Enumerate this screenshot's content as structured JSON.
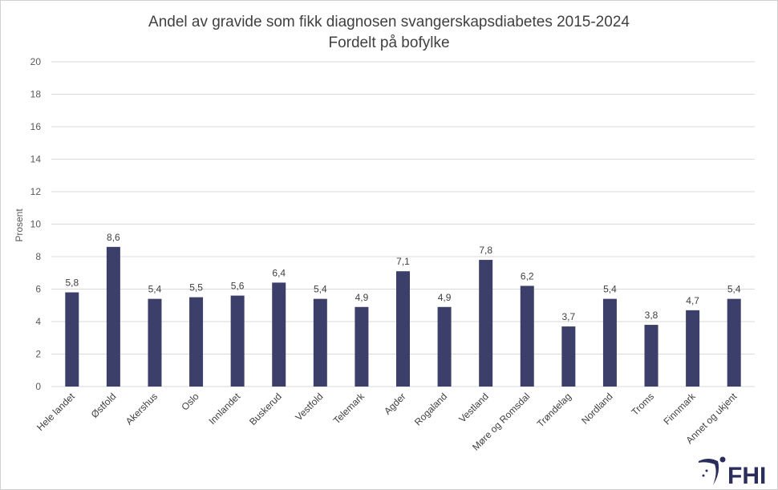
{
  "chart_data": {
    "type": "bar",
    "title": "Andel av gravide som fikk diagnosen svangerskapsdiabetes 2015-2024",
    "subtitle": "Fordelt på bofylke",
    "ylabel": "Prosent",
    "xlabel": "",
    "ylim": [
      0,
      20
    ],
    "yticks": [
      0,
      2,
      4,
      6,
      8,
      10,
      12,
      14,
      16,
      18,
      20
    ],
    "grid": true,
    "categories": [
      "Hele landet",
      "Østfold",
      "Akershus",
      "Oslo",
      "Innlandet",
      "Buskerud",
      "Vestfold",
      "Telemark",
      "Agder",
      "Rogaland",
      "Vestland",
      "Møre og Romsdal",
      "Trøndelag",
      "Nordland",
      "Troms",
      "Finnmark",
      "Annet og ukjent"
    ],
    "values": [
      5.8,
      8.6,
      5.4,
      5.5,
      5.6,
      6.4,
      5.4,
      4.9,
      7.1,
      4.9,
      7.8,
      6.2,
      3.7,
      5.4,
      3.8,
      4.7,
      5.4
    ],
    "data_labels": [
      "5,8",
      "8,6",
      "5,4",
      "5,5",
      "5,6",
      "6,4",
      "5,4",
      "4,9",
      "7,1",
      "4,9",
      "7,8",
      "6,2",
      "3,7",
      "5,4",
      "3,8",
      "4,7",
      "5,4"
    ],
    "bar_color": "#3d3f6b"
  },
  "logo": {
    "text": "FHI",
    "color": "#2b2d5c"
  }
}
